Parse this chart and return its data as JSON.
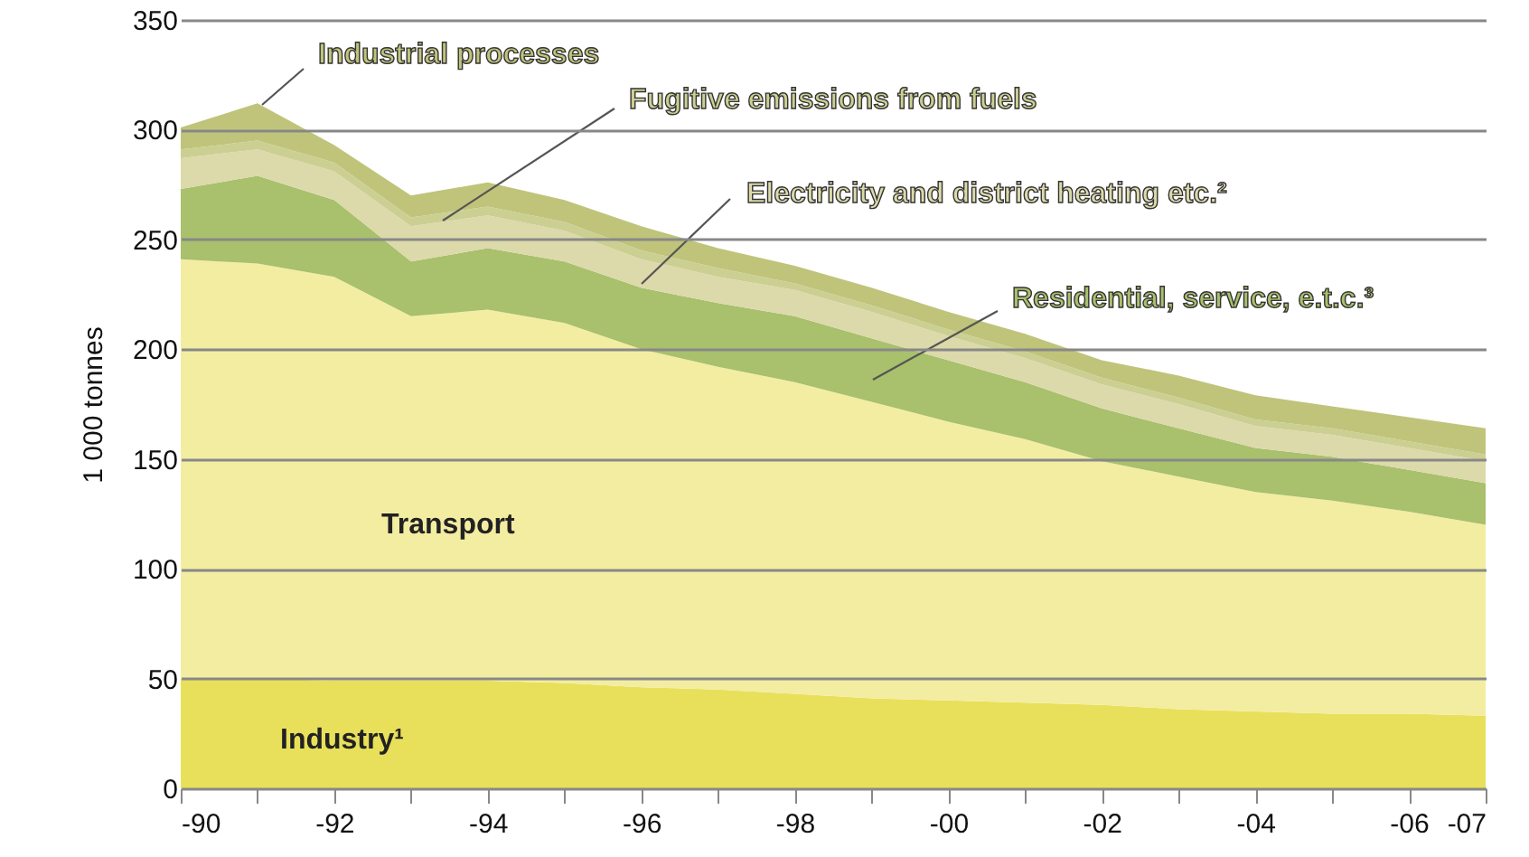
{
  "chart_data": {
    "type": "area",
    "stacked": true,
    "ylabel": "1 000 tonnes",
    "legend": false,
    "grid": "y",
    "categories": [
      "-90",
      null,
      "-92",
      null,
      "-94",
      null,
      "-96",
      null,
      "-98",
      null,
      "-00",
      null,
      "-02",
      null,
      "-04",
      null,
      "-06",
      "-07"
    ],
    "ylim": [
      0,
      350
    ],
    "yticks": [
      0,
      50,
      100,
      150,
      200,
      250,
      300,
      350
    ],
    "series": [
      {
        "name": "Industry¹",
        "color": "#e8e05a",
        "values": [
          50,
          50,
          49,
          49,
          49,
          48,
          46,
          45,
          43,
          41,
          40,
          39,
          38,
          36,
          35,
          34,
          34,
          33
        ]
      },
      {
        "name": "Transport",
        "color": "#f3eda2",
        "values": [
          191,
          189,
          184,
          166,
          169,
          164,
          154,
          147,
          142,
          135,
          127,
          120,
          111,
          106,
          100,
          97,
          92,
          87
        ]
      },
      {
        "name": "Residential, service, e.t.c.³",
        "color": "#a9c06c",
        "values": [
          32,
          40,
          35,
          25,
          28,
          28,
          28,
          29,
          30,
          29,
          28,
          26,
          24,
          22,
          20,
          20,
          19,
          19
        ]
      },
      {
        "name": "Electricity and district heating etc.²",
        "color": "#dcd9aa",
        "values": [
          14,
          12,
          13,
          16,
          15,
          14,
          13,
          12,
          12,
          12,
          11,
          11,
          11,
          11,
          10,
          10,
          10,
          10
        ]
      },
      {
        "name": "Fugitive emissions from fuels",
        "color": "#cccf92",
        "values": [
          4,
          4,
          4,
          4,
          4,
          4,
          4,
          4,
          3,
          3,
          3,
          3,
          3,
          3,
          3,
          3,
          3,
          3
        ]
      },
      {
        "name": "Industrial processes",
        "color": "#bfc47a",
        "values": [
          10,
          17,
          8,
          10,
          11,
          10,
          11,
          9,
          8,
          8,
          8,
          8,
          8,
          10,
          11,
          10,
          11,
          12
        ]
      }
    ]
  }
}
